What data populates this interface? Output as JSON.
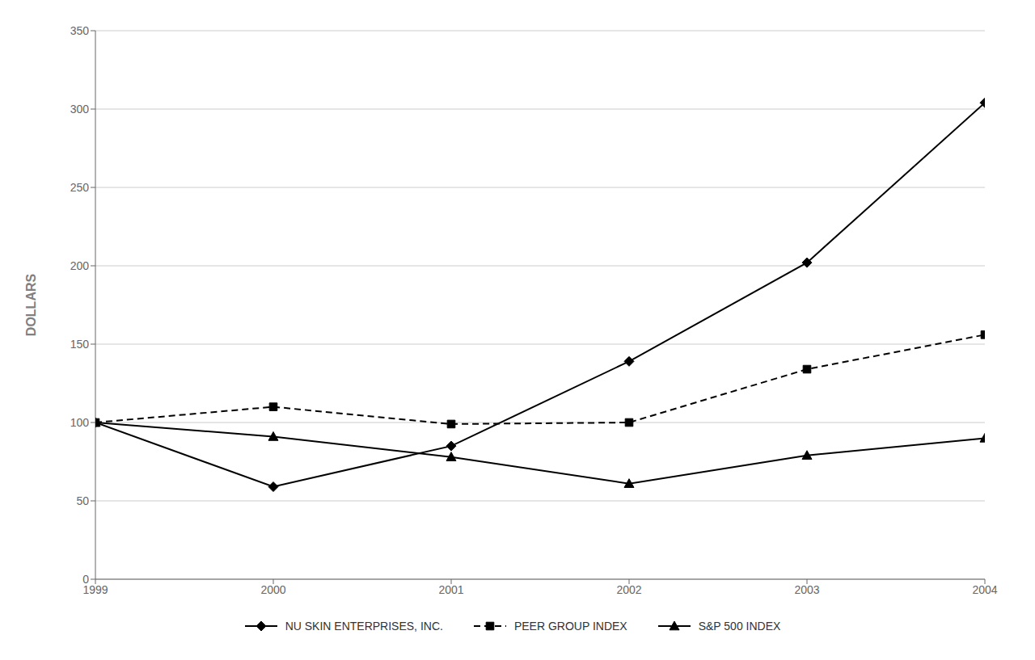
{
  "chart_data": {
    "type": "line",
    "x": [
      1999,
      2000,
      2001,
      2002,
      2003,
      2004
    ],
    "xlim": [
      1999,
      2004
    ],
    "xticks": [
      1999,
      2000,
      2001,
      2002,
      2003,
      2004
    ],
    "ylabel": "DOLLARS",
    "ylim": [
      0,
      350
    ],
    "yticks": [
      0,
      50,
      100,
      150,
      200,
      250,
      300,
      350
    ],
    "grid": true,
    "legend": "bottom",
    "series": [
      {
        "name": "NU SKIN ENTERPRISES, INC.",
        "color": "#000000",
        "marker": "diamond",
        "line_style": "solid",
        "values": [
          100,
          59,
          85,
          139,
          202,
          304
        ]
      },
      {
        "name": "PEER GROUP INDEX",
        "color": "#000000",
        "marker": "square",
        "line_style": "dashed",
        "values": [
          100,
          110,
          99,
          100,
          134,
          156
        ]
      },
      {
        "name": "S&P 500 INDEX",
        "color": "#000000",
        "marker": "triangle",
        "line_style": "solid",
        "values": [
          100,
          91,
          78,
          61,
          79,
          90
        ]
      }
    ]
  }
}
